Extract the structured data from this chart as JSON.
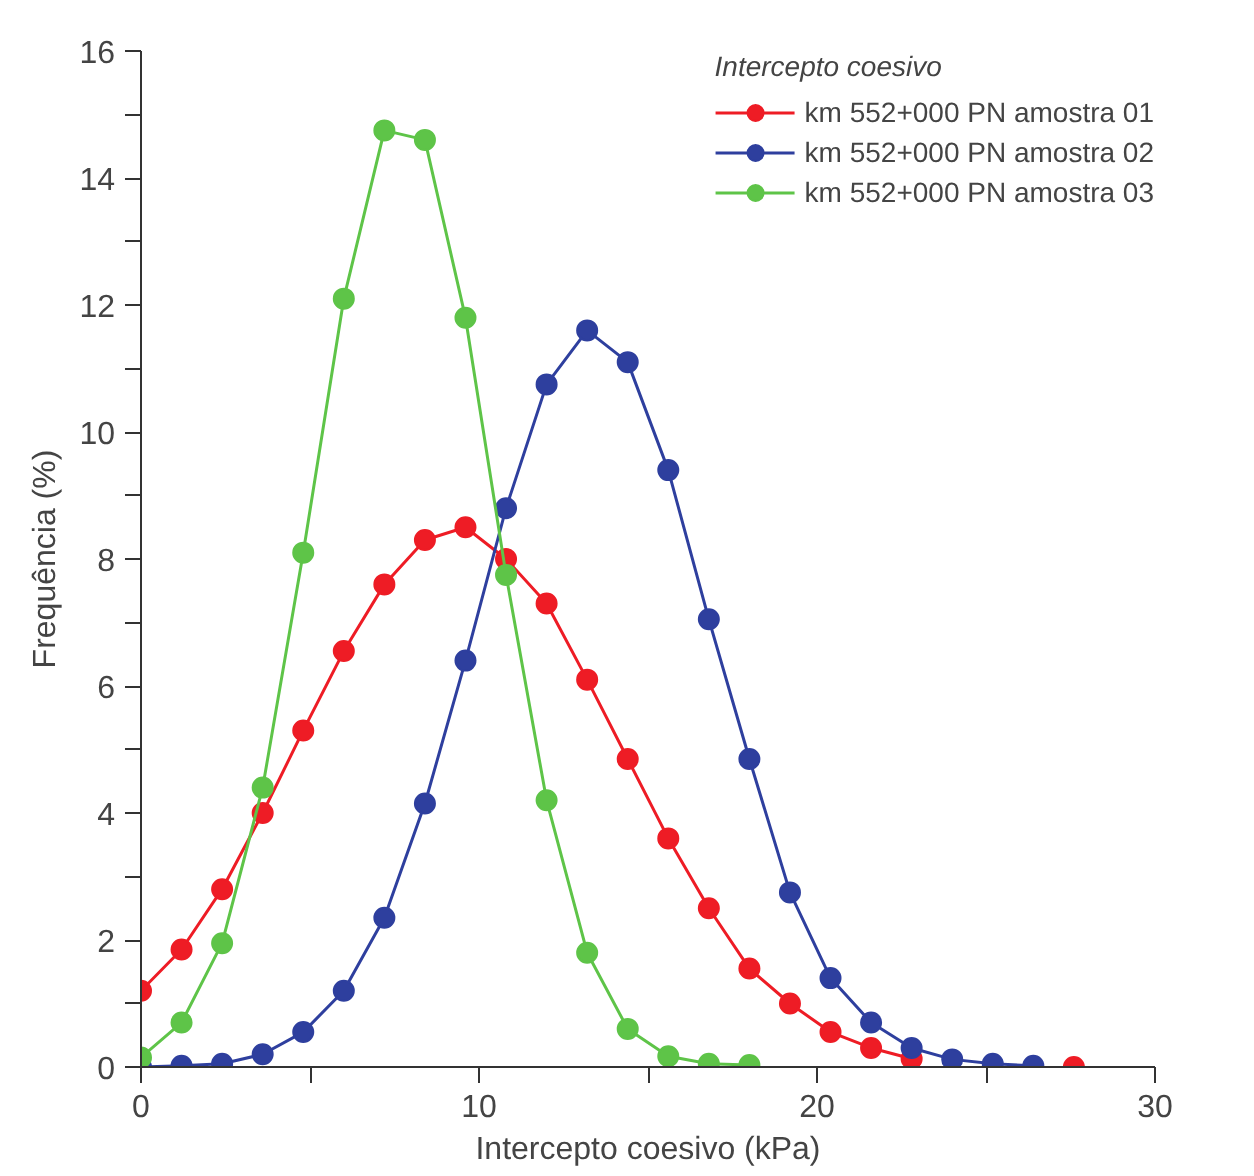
{
  "chart_data": {
    "type": "line",
    "xlabel": "Intercepto coesivo (kPa)",
    "ylabel": "Frequência (%)",
    "legend_title": "Intercepto coesivo",
    "legend": "top right",
    "grid": false,
    "marker": "circle",
    "line_style": "solid",
    "xlim": [
      0,
      30
    ],
    "ylim": [
      0,
      16
    ],
    "xticks": [
      0,
      {
        "value": 5,
        "label": null
      },
      10,
      {
        "value": 15,
        "label": null
      },
      20,
      {
        "value": 25,
        "label": null
      },
      30
    ],
    "yticks": [
      0,
      {
        "value": 1,
        "label": null
      },
      2,
      {
        "value": 3,
        "label": null
      },
      4,
      {
        "value": 5,
        "label": null
      },
      6,
      {
        "value": 7,
        "label": null
      },
      8,
      {
        "value": 9,
        "label": null
      },
      10,
      {
        "value": 11,
        "label": null
      },
      12,
      {
        "value": 13,
        "label": null
      },
      14,
      {
        "value": 15,
        "label": null
      },
      16
    ],
    "series": [
      {
        "name": "km 552+000 PN amostra 01",
        "color": "#ee1c25",
        "x": [
          0,
          1.2,
          2.4,
          3.6,
          4.8,
          6,
          7.2,
          8.4,
          9.6,
          10.8,
          12,
          13.2,
          14.4,
          15.6,
          16.8,
          18,
          19.2,
          20.4,
          21.6,
          22.8,
          24,
          25.2,
          26.4,
          27.6
        ],
        "values": [
          1.2,
          1.85,
          2.8,
          4.0,
          5.3,
          6.55,
          7.6,
          8.3,
          8.5,
          8.0,
          7.3,
          6.1,
          4.85,
          3.6,
          2.5,
          1.55,
          1.0,
          0.55,
          0.3,
          0.13,
          null,
          null,
          null,
          0
        ]
      },
      {
        "name": "km 552+000 PN amostra 02",
        "color": "#2e3f9e",
        "x": [
          0,
          1.2,
          2.4,
          3.6,
          4.8,
          6,
          7.2,
          8.4,
          9.6,
          10.8,
          12,
          13.2,
          14.4,
          15.6,
          16.8,
          18,
          19.2,
          20.4,
          21.6,
          22.8,
          24,
          25.2,
          26.4
        ],
        "values": [
          0,
          0.02,
          0.05,
          0.2,
          0.55,
          1.2,
          2.35,
          4.15,
          6.4,
          8.8,
          10.75,
          11.6,
          11.1,
          9.4,
          7.05,
          4.85,
          2.75,
          1.4,
          0.7,
          0.3,
          0.12,
          0.05,
          0.02
        ]
      },
      {
        "name": "km 552+000 PN amostra 03",
        "color": "#5ec448",
        "x": [
          0,
          1.2,
          2.4,
          3.6,
          4.8,
          6,
          7.2,
          8.4,
          9.6,
          10.8,
          12,
          13.2,
          14.4,
          15.6,
          16.8,
          18
        ],
        "values": [
          0.15,
          0.7,
          1.95,
          4.4,
          8.1,
          12.1,
          14.75,
          14.6,
          11.8,
          7.75,
          4.2,
          1.8,
          0.6,
          0.17,
          0.05,
          0.03
        ]
      }
    ]
  }
}
